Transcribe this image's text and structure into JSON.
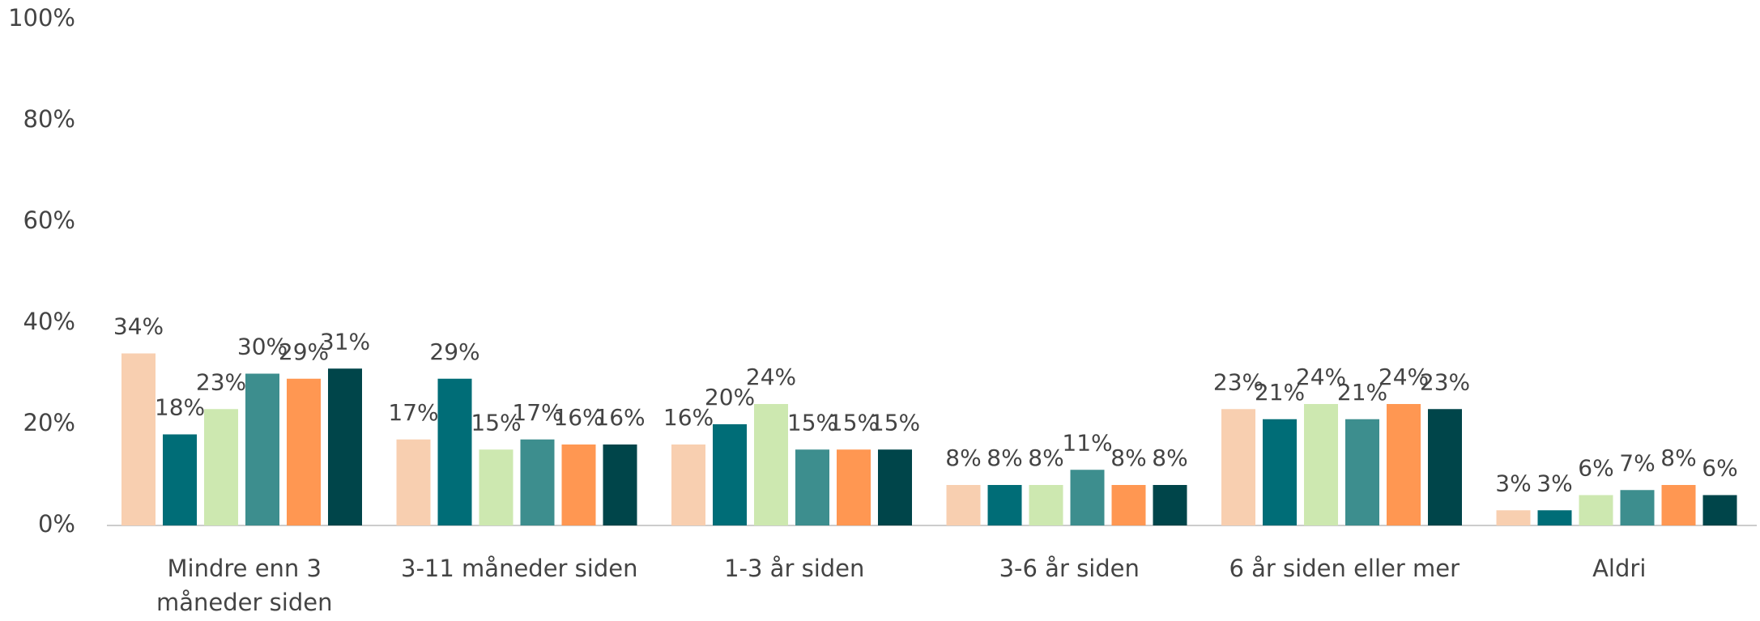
{
  "chart_data": {
    "type": "bar",
    "categories": [
      "Mindre enn 3 måneder siden",
      "3-11 måneder siden",
      "1-3 år siden",
      "3-6 år siden",
      "6 år siden eller mer",
      "Aldri"
    ],
    "series": [
      {
        "color": "#f8cfb0",
        "values": [
          34,
          17,
          16,
          8,
          23,
          3
        ],
        "value_labels": [
          "34%",
          "17%",
          "16%",
          "8%",
          "23%",
          "3%"
        ]
      },
      {
        "color": "#006d77",
        "values": [
          18,
          29,
          20,
          8,
          21,
          3
        ],
        "value_labels": [
          "18%",
          "29%",
          "20%",
          "8%",
          "21%",
          "3%"
        ]
      },
      {
        "color": "#cde8b0",
        "values": [
          23,
          15,
          24,
          8,
          24,
          6
        ],
        "value_labels": [
          "23%",
          "15%",
          "24%",
          "8%",
          "24%",
          "6%"
        ]
      },
      {
        "color": "#3d8e8e",
        "values": [
          30,
          17,
          15,
          11,
          21,
          7
        ],
        "value_labels": [
          "30%",
          "17%",
          "15%",
          "11%",
          "21%",
          "7%"
        ]
      },
      {
        "color": "#ff9752",
        "values": [
          29,
          16,
          15,
          8,
          24,
          8
        ],
        "value_labels": [
          "29%",
          "16%",
          "15%",
          "8%",
          "24%",
          "8%"
        ]
      },
      {
        "color": "#00454a",
        "values": [
          31,
          16,
          15,
          8,
          23,
          6
        ],
        "value_labels": [
          "31%",
          "16%",
          "15%",
          "8%",
          "23%",
          "6%"
        ]
      }
    ],
    "ylim": [
      0,
      100
    ],
    "yticks": [
      {
        "value": 0,
        "label": "0%"
      },
      {
        "value": 20,
        "label": "20%"
      },
      {
        "value": 40,
        "label": "40%"
      },
      {
        "value": 60,
        "label": "60%"
      },
      {
        "value": 80,
        "label": "80%"
      },
      {
        "value": 100,
        "label": "100%"
      }
    ],
    "grid": false
  }
}
